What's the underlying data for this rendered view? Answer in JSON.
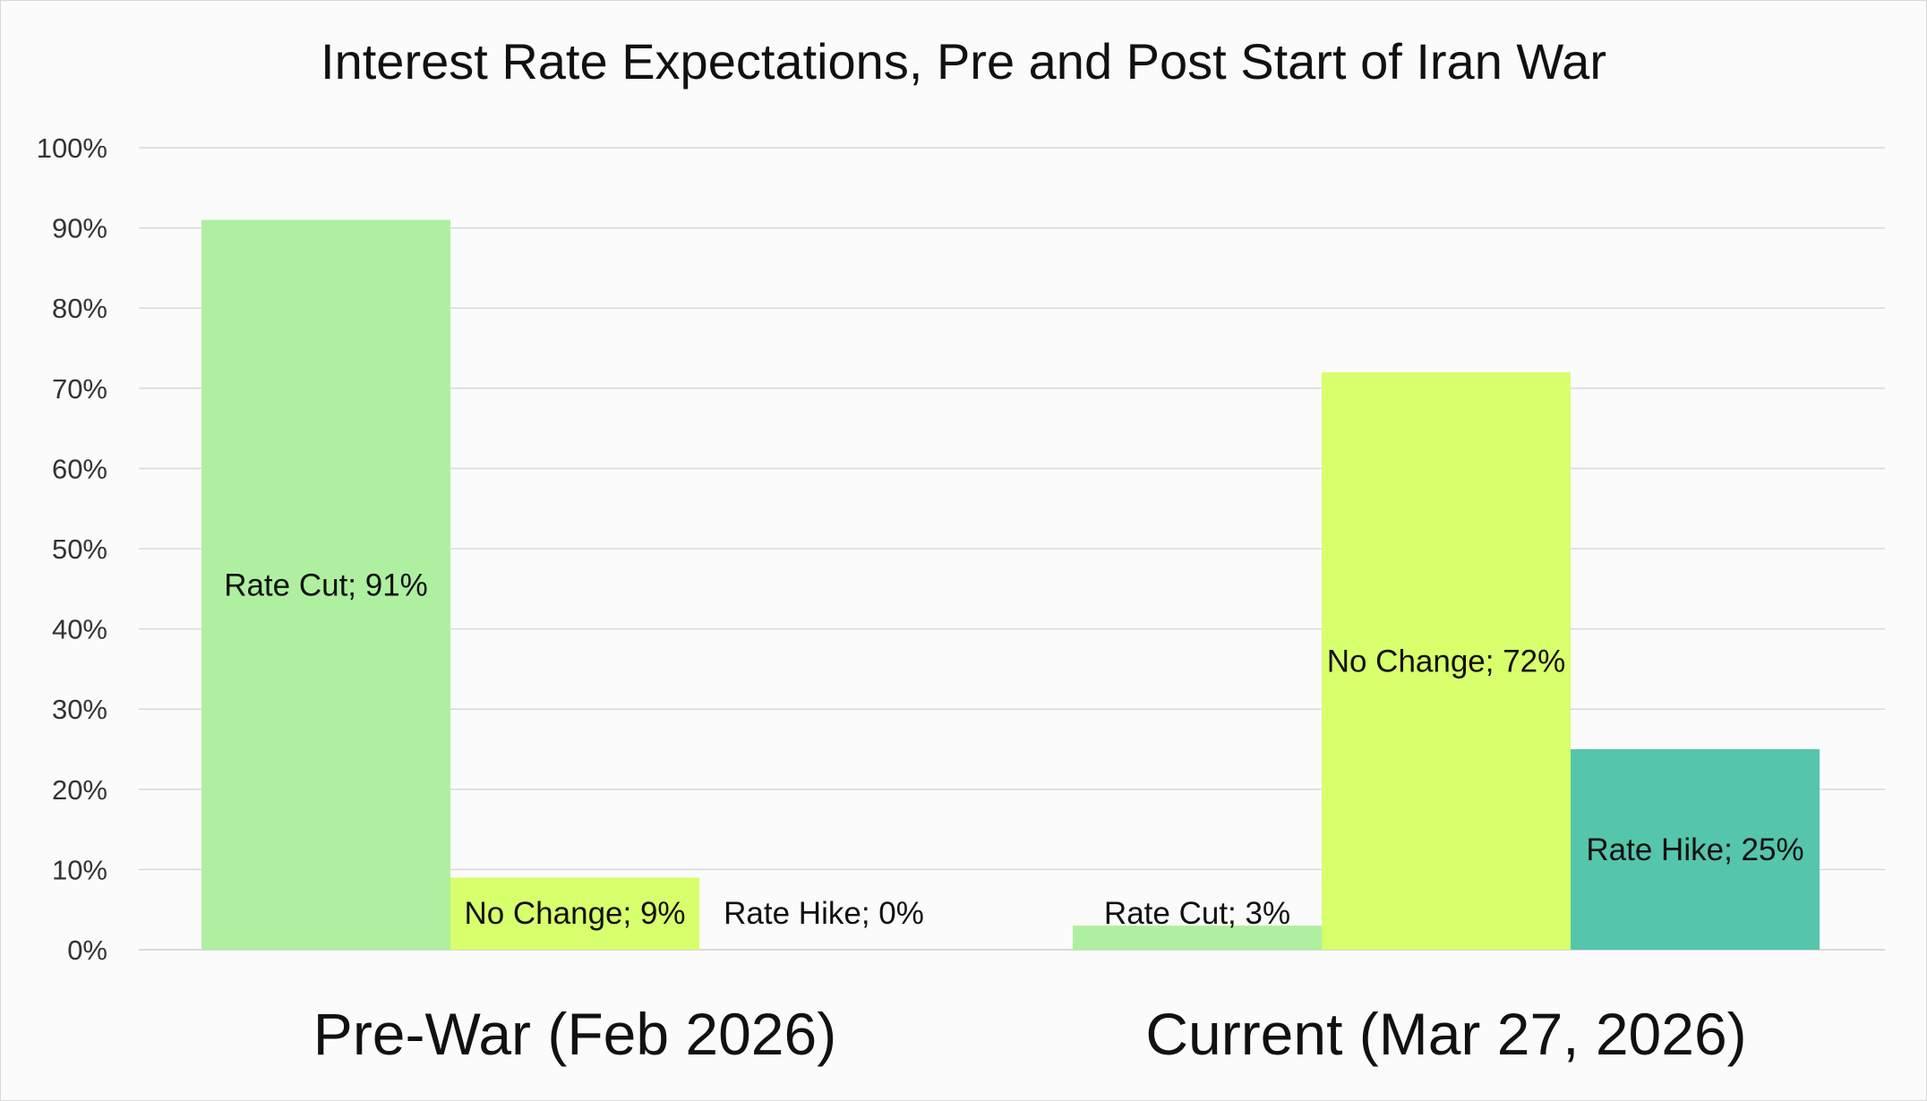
{
  "chart_data": {
    "type": "bar",
    "title": "Interest Rate Expectations, Pre and Post Start of Iran War",
    "xlabel": "",
    "ylabel": "",
    "categories": [
      "Pre-War (Feb 2026)",
      "Current (Mar 27, 2026)"
    ],
    "series": [
      {
        "name": "Rate Cut",
        "values": [
          91,
          3
        ],
        "labels": [
          "Rate Cut; 91%",
          "Rate Cut; 3%"
        ],
        "color": "#aef0a0"
      },
      {
        "name": "No Change",
        "values": [
          9,
          72
        ],
        "labels": [
          "No Change; 9%",
          "No Change; 72%"
        ],
        "color": "#d8ff6c"
      },
      {
        "name": "Rate Hike",
        "values": [
          0,
          25
        ],
        "labels": [
          "Rate Hike; 0%",
          "Rate Hike; 25%"
        ],
        "color": "#55c5ab"
      }
    ],
    "ylim": [
      0,
      100
    ],
    "yticks": [
      "0%",
      "10%",
      "20%",
      "30%",
      "40%",
      "50%",
      "60%",
      "70%",
      "80%",
      "90%",
      "100%"
    ],
    "grid": true,
    "legend": "none",
    "gridline_color": "#d9d9d9"
  }
}
